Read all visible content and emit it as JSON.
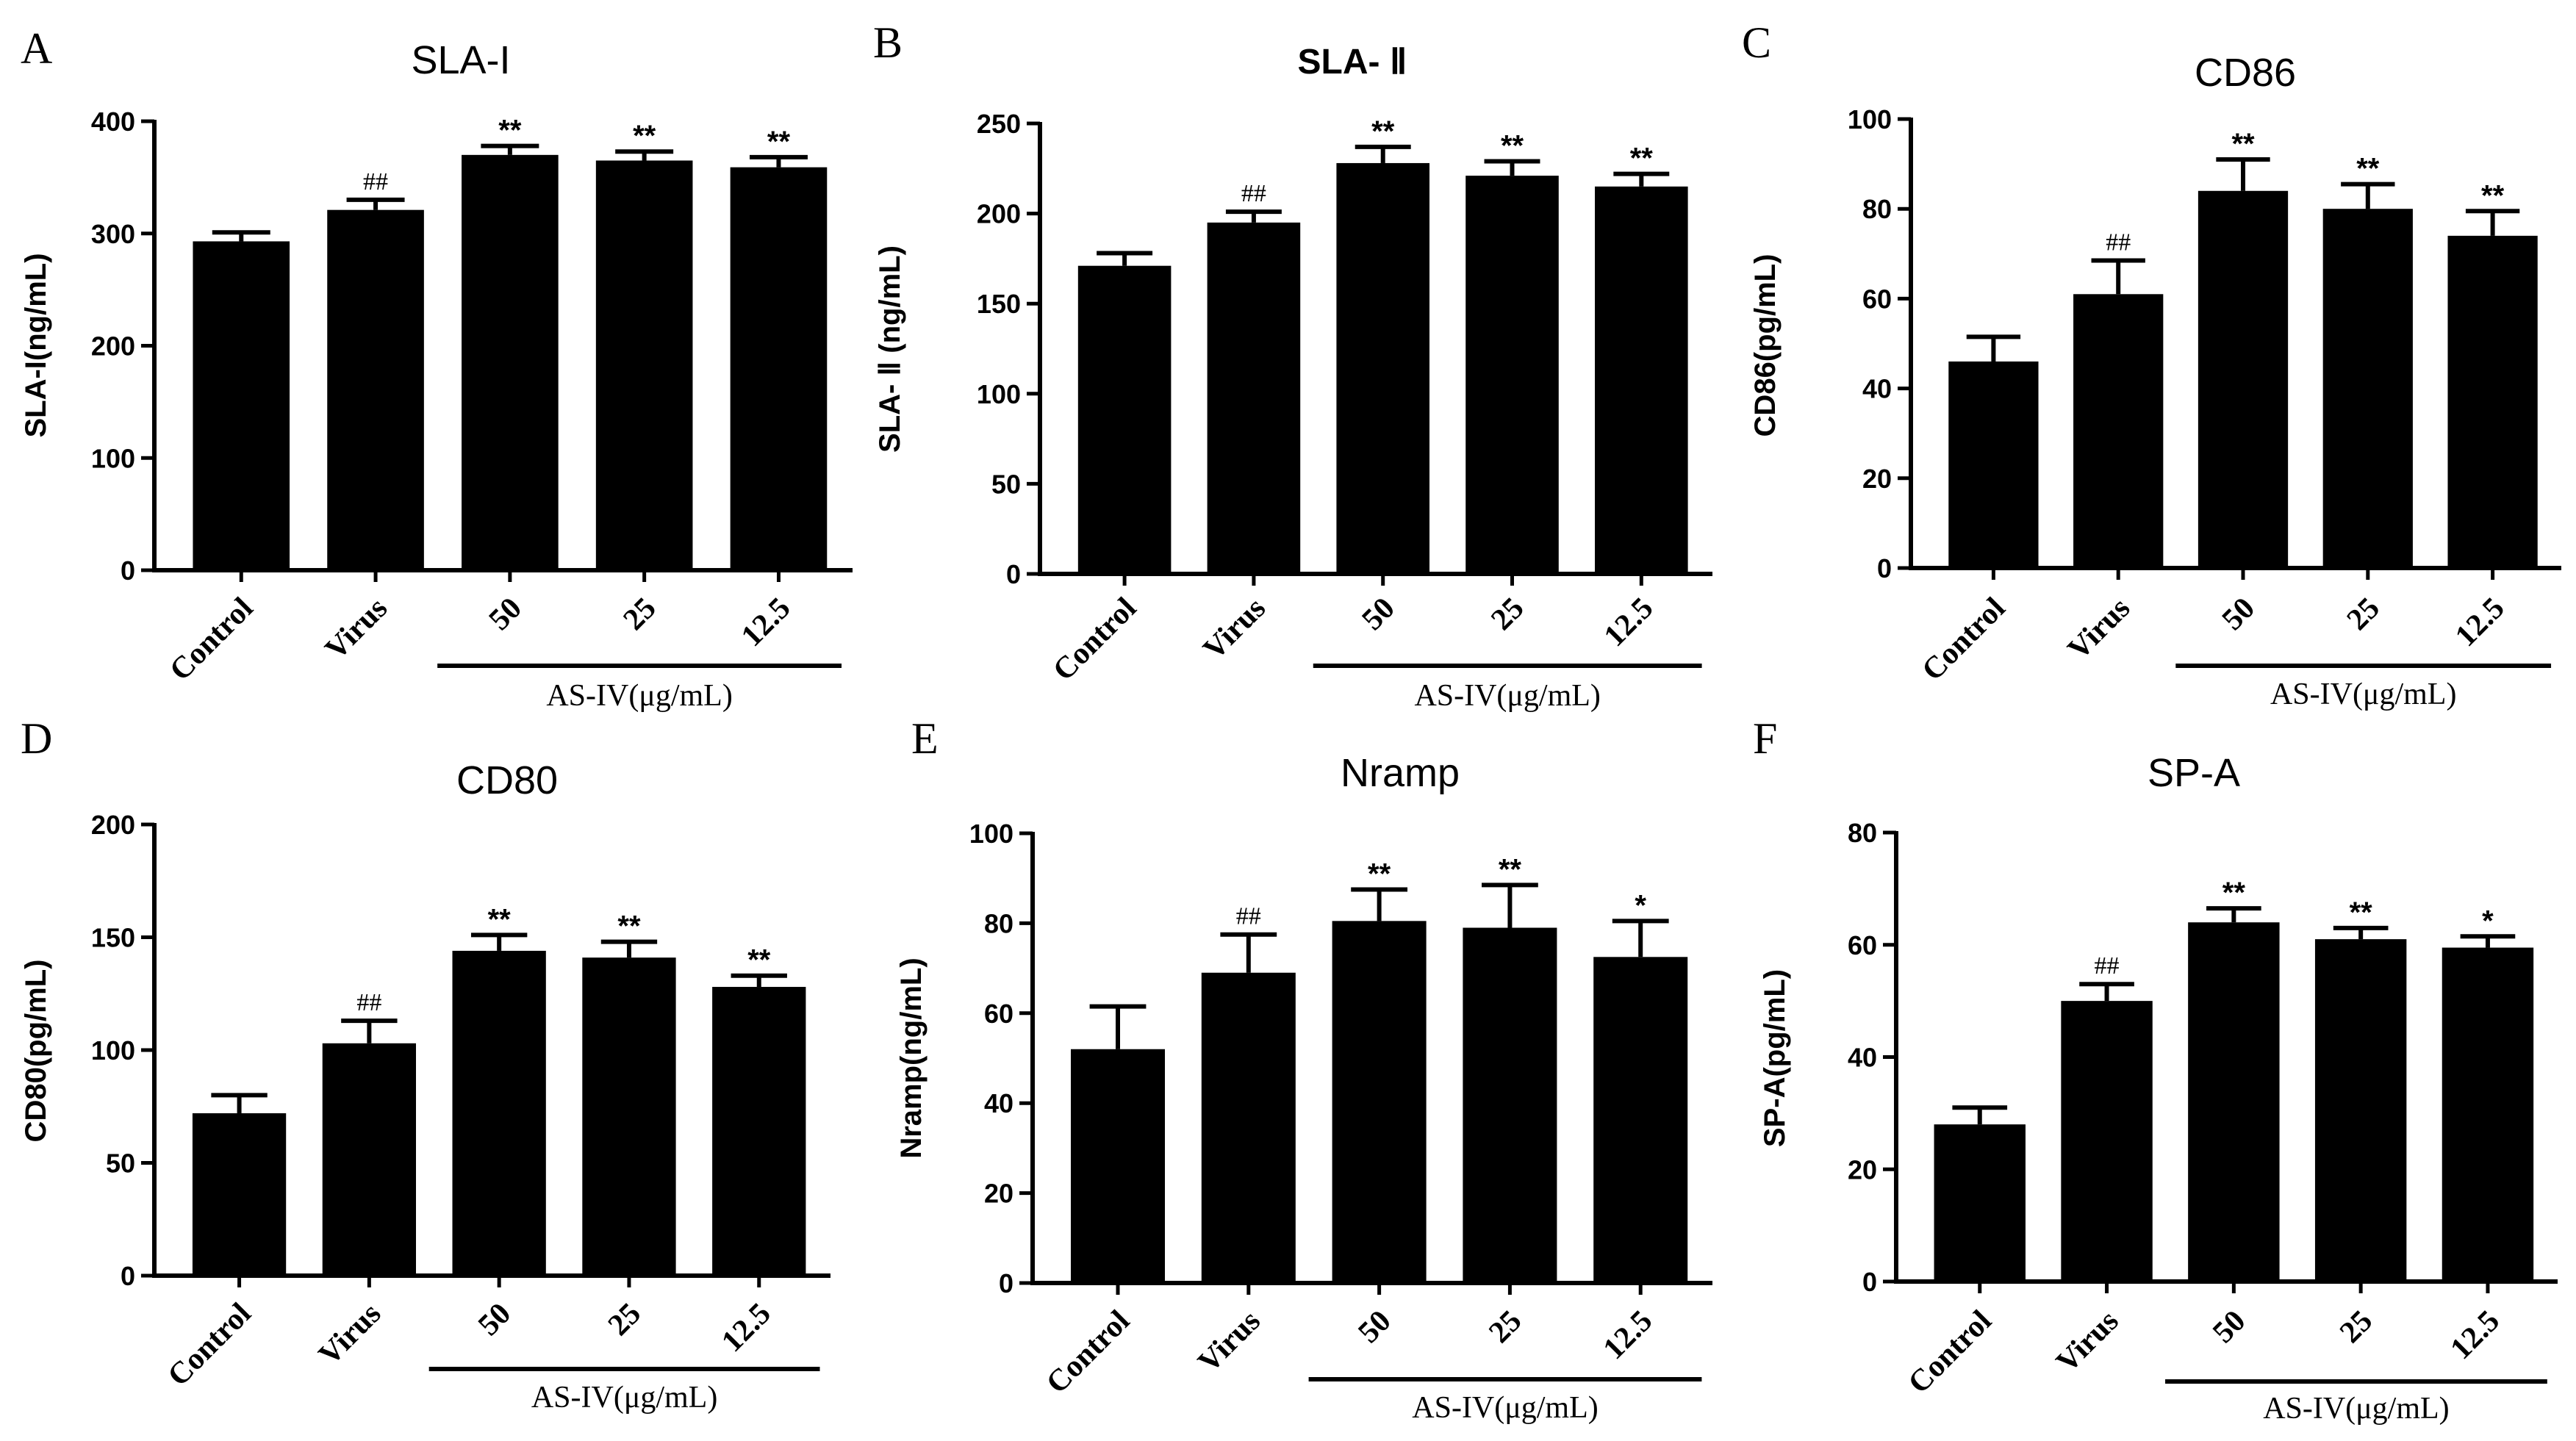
{
  "chart_data": [
    {
      "type": "bar",
      "letter": "A",
      "title": "SLA-I",
      "title_bold": false,
      "ylabel": "SLA-I(ng/mL)",
      "ylim": [
        0,
        400
      ],
      "yticks": [
        0,
        100,
        200,
        300,
        400
      ],
      "categories": [
        "Control",
        "Virus",
        "50",
        "25",
        "12.5"
      ],
      "values": [
        293,
        321,
        370,
        365,
        359
      ],
      "errors": [
        8,
        9,
        8,
        8,
        9
      ],
      "significance": [
        "",
        "##",
        "**",
        "**",
        "**"
      ],
      "group_label": "AS-IV(μg/mL)"
    },
    {
      "type": "bar",
      "letter": "B",
      "title": "SLA- Ⅱ",
      "title_bold": true,
      "ylabel": "SLA- Ⅱ (ng/mL)",
      "ylim": [
        0,
        250
      ],
      "yticks": [
        0,
        50,
        100,
        150,
        200,
        250
      ],
      "categories": [
        "Control",
        "Virus",
        "50",
        "25",
        "12.5"
      ],
      "values": [
        171,
        195,
        228,
        221,
        215
      ],
      "errors": [
        7,
        6,
        9,
        8,
        7
      ],
      "significance": [
        "",
        "##",
        "**",
        "**",
        "**"
      ],
      "group_label": "AS-IV(μg/mL)"
    },
    {
      "type": "bar",
      "letter": "C",
      "title": "CD86",
      "title_bold": false,
      "ylabel": "CD86(pg/mL)",
      "ylim": [
        0,
        100
      ],
      "yticks": [
        0,
        20,
        40,
        60,
        80,
        100
      ],
      "categories": [
        "Control",
        "Virus",
        "50",
        "25",
        "12.5"
      ],
      "values": [
        46,
        61,
        84,
        80,
        74
      ],
      "errors": [
        5.5,
        7.5,
        7,
        5.5,
        5.5
      ],
      "significance": [
        "",
        "##",
        "**",
        "**",
        "**"
      ],
      "group_label": "AS-IV(μg/mL)"
    },
    {
      "type": "bar",
      "letter": "D",
      "title": "CD80",
      "title_bold": false,
      "ylabel": "CD80(pg/mL)",
      "ylim": [
        0,
        200
      ],
      "yticks": [
        0,
        50,
        100,
        150,
        200
      ],
      "categories": [
        "Control",
        "Virus",
        "50",
        "25",
        "12.5"
      ],
      "values": [
        72,
        103,
        144,
        141,
        128
      ],
      "errors": [
        8,
        10,
        7,
        7,
        5
      ],
      "significance": [
        "",
        "##",
        "**",
        "**",
        "**"
      ],
      "group_label": "AS-IV(μg/mL)"
    },
    {
      "type": "bar",
      "letter": "E",
      "title": "Nramp",
      "title_bold": false,
      "ylabel": "Nramp(ng/mL)",
      "ylim": [
        0,
        100
      ],
      "yticks": [
        0,
        20,
        40,
        60,
        80,
        100
      ],
      "categories": [
        "Control",
        "Virus",
        "50",
        "25",
        "12.5"
      ],
      "values": [
        52,
        69,
        80.5,
        79,
        72.5
      ],
      "errors": [
        9.5,
        8.5,
        7,
        9.5,
        8
      ],
      "significance": [
        "",
        "##",
        "**",
        "**",
        "*"
      ],
      "group_label": "AS-IV(μg/mL)"
    },
    {
      "type": "bar",
      "letter": "F",
      "title": "SP-A",
      "title_bold": false,
      "ylabel": "SP-A(pg/mL)",
      "ylim": [
        0,
        80
      ],
      "yticks": [
        0,
        20,
        40,
        60,
        80
      ],
      "categories": [
        "Control",
        "Virus",
        "50",
        "25",
        "12.5"
      ],
      "values": [
        28,
        50,
        64,
        61,
        59.5
      ],
      "errors": [
        3,
        3,
        2.5,
        2,
        2
      ],
      "significance": [
        "",
        "##",
        "**",
        "**",
        "*"
      ],
      "group_label": "AS-IV(μg/mL)"
    }
  ]
}
